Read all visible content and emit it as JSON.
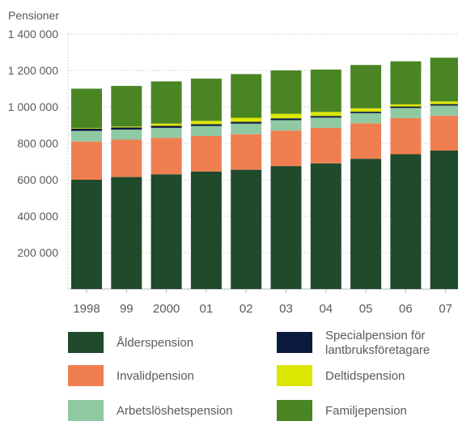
{
  "chart_data": {
    "type": "bar",
    "stacked": true,
    "ylabel": "Pensioner",
    "ylim": [
      0,
      1400000
    ],
    "y_ticks": [
      {
        "value": 200000,
        "label": "200 000"
      },
      {
        "value": 400000,
        "label": "400 000"
      },
      {
        "value": 600000,
        "label": "600 000"
      },
      {
        "value": 800000,
        "label": "800 000"
      },
      {
        "value": 1000000,
        "label": "1 000 000"
      },
      {
        "value": 1200000,
        "label": "1 200 000"
      },
      {
        "value": 1400000,
        "label": "1 400 000"
      }
    ],
    "grid": true,
    "categories": [
      "1998",
      "99",
      "2000",
      "01",
      "02",
      "03",
      "04",
      "05",
      "06",
      "07"
    ],
    "series": [
      {
        "name": "Ålderspension",
        "color": "#1f4a2c",
        "values": [
          600000,
          615000,
          630000,
          645000,
          655000,
          675000,
          690000,
          715000,
          740000,
          760000
        ]
      },
      {
        "name": "Invalidpension",
        "color": "#ef7f50",
        "values": [
          210000,
          205000,
          200000,
          195000,
          195000,
          195000,
          195000,
          195000,
          198000,
          192000
        ]
      },
      {
        "name": "Arbetslöshetspension",
        "color": "#8fc9a2",
        "values": [
          58000,
          55000,
          55000,
          55000,
          58000,
          57000,
          56000,
          56000,
          56000,
          55000
        ]
      },
      {
        "name": "Specialpension för lantbruksföretagare",
        "color": "#0d1a40",
        "values": [
          12000,
          12000,
          11000,
          10000,
          10000,
          10000,
          9000,
          8000,
          8000,
          8000
        ]
      },
      {
        "name": "Deltidspension",
        "color": "#dce600",
        "values": [
          3000,
          5000,
          12000,
          18000,
          22000,
          25000,
          22000,
          18000,
          12000,
          15000
        ]
      },
      {
        "name": "Familjepension",
        "color": "#4a8524",
        "values": [
          217000,
          223000,
          232000,
          232000,
          240000,
          238000,
          233000,
          238000,
          236000,
          240000
        ]
      }
    ],
    "legend_position": "bottom",
    "legend_order": [
      "Ålderspension",
      "Specialpension för lantbruksföretagare",
      "Invalidpension",
      "Deltidspension",
      "Arbetslöshetspension",
      "Familjepension"
    ]
  }
}
